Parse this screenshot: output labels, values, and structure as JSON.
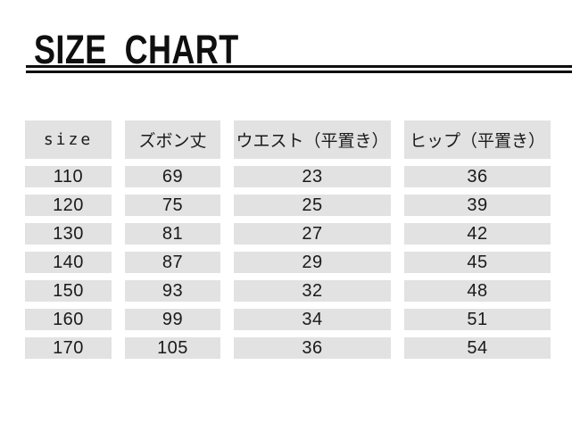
{
  "page": {
    "title": "SIZE CHART"
  },
  "table": {
    "headers": [
      "size",
      "ズボン丈",
      "ウエスト（平置き）",
      "ヒップ（平置き）"
    ],
    "rows": [
      [
        "110",
        "69",
        "23",
        "36"
      ],
      [
        "120",
        "75",
        "25",
        "39"
      ],
      [
        "130",
        "81",
        "27",
        "42"
      ],
      [
        "140",
        "87",
        "29",
        "45"
      ],
      [
        "150",
        "93",
        "32",
        "48"
      ],
      [
        "160",
        "99",
        "34",
        "51"
      ],
      [
        "170",
        "105",
        "36",
        "54"
      ]
    ]
  },
  "colors": {
    "cell_background": "#e2e2e2",
    "text": "#1a1a1a",
    "title_text": "#0f0f0f"
  }
}
